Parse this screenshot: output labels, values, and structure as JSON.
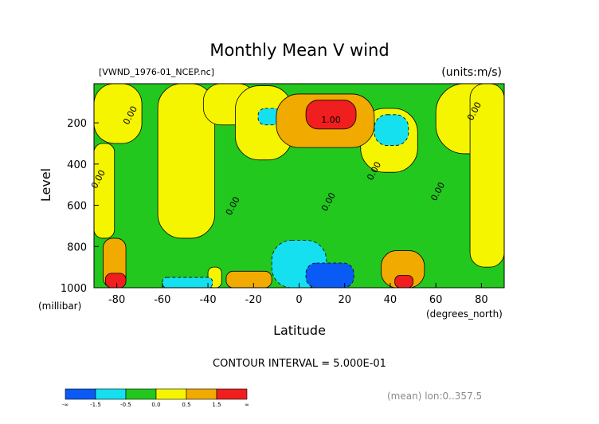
{
  "chart_data": {
    "type": "heatmap",
    "title": "Monthly Mean V wind",
    "file_label": "[VWND_1976-01_NCEP.nc]",
    "units_label": "(units:m/s)",
    "ylabel": "Level",
    "ylabel_units": "(millibar)",
    "xlabel": "Latitude",
    "xlabel_units": "(degrees_north)",
    "xlim": [
      -90,
      90
    ],
    "ylim": [
      1000,
      10
    ],
    "x_ticks": [
      -80,
      -60,
      -40,
      -20,
      0,
      20,
      40,
      60,
      80
    ],
    "x_tick_labels": [
      "-80",
      "-60",
      "-40",
      "-20",
      "0",
      "20",
      "40",
      "60",
      "80"
    ],
    "y_ticks": [
      200,
      400,
      600,
      800,
      1000
    ],
    "y_tick_labels": [
      "200",
      "400",
      "600",
      "800",
      "1000"
    ],
    "contour_interval_text": "CONTOUR INTERVAL = 5.000E-01",
    "footer_text": "(mean) lon:0..357.5",
    "contour_labels": [
      {
        "x": -73,
        "y": 170,
        "text": "0.00"
      },
      {
        "x": -87,
        "y": 480,
        "text": "0.00"
      },
      {
        "x": -28,
        "y": 610,
        "text": "0.00"
      },
      {
        "x": 14,
        "y": 200,
        "text": "1.00"
      },
      {
        "x": 14,
        "y": 590,
        "text": "0.00"
      },
      {
        "x": 34,
        "y": 440,
        "text": "0.00"
      },
      {
        "x": 62,
        "y": 540,
        "text": "0.00"
      },
      {
        "x": 78,
        "y": 150,
        "text": "0.00"
      }
    ],
    "colorbar": {
      "colors": [
        "#0a5af5",
        "#14e0f0",
        "#22c81e",
        "#f5f500",
        "#f0aa00",
        "#f01e1e"
      ],
      "labels": [
        "-∞",
        "-1.5",
        "-0.5",
        "0.0",
        "0.5",
        "1.5",
        "∞"
      ]
    },
    "regions": [
      {
        "level": 2,
        "x": [
          -90,
          90
        ],
        "y": [
          10,
          1000
        ]
      },
      {
        "level": 3,
        "x": [
          -90,
          -69
        ],
        "y": [
          10,
          300
        ]
      },
      {
        "level": 3,
        "x": [
          -90,
          -81
        ],
        "y": [
          300,
          760
        ]
      },
      {
        "level": 3,
        "x": [
          -62,
          -37
        ],
        "y": [
          10,
          760
        ]
      },
      {
        "level": 3,
        "x": [
          -42,
          -19
        ],
        "y": [
          10,
          210
        ]
      },
      {
        "level": 3,
        "x": [
          -28,
          -3
        ],
        "y": [
          20,
          380
        ]
      },
      {
        "level": 3,
        "x": [
          27,
          52
        ],
        "y": [
          130,
          440
        ]
      },
      {
        "level": 3,
        "x": [
          60,
          90
        ],
        "y": [
          10,
          350
        ]
      },
      {
        "level": 3,
        "x": [
          75,
          90
        ],
        "y": [
          10,
          900
        ]
      },
      {
        "level": 3,
        "x": [
          -40,
          -34
        ],
        "y": [
          900,
          1000
        ]
      },
      {
        "level": 1,
        "x": [
          -18,
          -8
        ],
        "y": [
          130,
          210
        ]
      },
      {
        "level": 1,
        "x": [
          33,
          48
        ],
        "y": [
          160,
          310
        ]
      },
      {
        "level": 1,
        "x": [
          -12,
          12
        ],
        "y": [
          770,
          1000
        ]
      },
      {
        "level": 1,
        "x": [
          -60,
          -38
        ],
        "y": [
          950,
          1000
        ]
      },
      {
        "level": 0,
        "x": [
          3,
          24
        ],
        "y": [
          880,
          1000
        ]
      },
      {
        "level": 4,
        "x": [
          -10,
          33
        ],
        "y": [
          60,
          320
        ]
      },
      {
        "level": 4,
        "x": [
          -32,
          -12
        ],
        "y": [
          920,
          1000
        ]
      },
      {
        "level": 4,
        "x": [
          36,
          55
        ],
        "y": [
          820,
          1000
        ]
      },
      {
        "level": 4,
        "x": [
          -86,
          -76
        ],
        "y": [
          760,
          1000
        ]
      },
      {
        "level": 5,
        "x": [
          3,
          25
        ],
        "y": [
          90,
          230
        ]
      },
      {
        "level": 5,
        "x": [
          -85,
          -76
        ],
        "y": [
          930,
          1000
        ]
      },
      {
        "level": 5,
        "x": [
          42,
          50
        ],
        "y": [
          940,
          1000
        ]
      }
    ]
  }
}
